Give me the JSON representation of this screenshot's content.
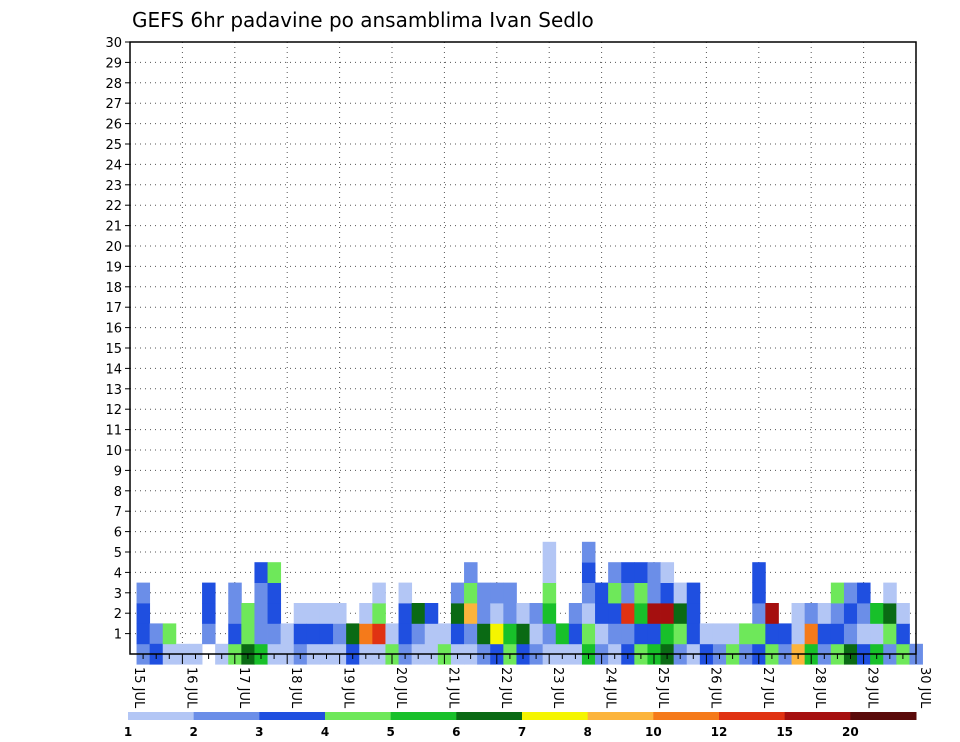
{
  "chart_data": {
    "type": "heatmap",
    "title": "GEFS 6hr padavine po ansamblima Ivan Sedlo",
    "xlabel": "",
    "ylabel": "",
    "x_ticks": [
      "15 JUL",
      "16 JUL",
      "17 JUL",
      "18 JUL",
      "19 JUL",
      "20 JUL",
      "21 JUL",
      "22 JUL",
      "23 JUL",
      "24 JUL",
      "25 JUL",
      "26 JUL",
      "27 JUL",
      "28 JUL",
      "29 JUL",
      "30 JUL"
    ],
    "xlim": [
      0,
      60
    ],
    "ylim": [
      0,
      30
    ],
    "y_ticks": [
      1,
      2,
      3,
      4,
      5,
      6,
      7,
      8,
      9,
      10,
      11,
      12,
      13,
      14,
      15,
      16,
      17,
      18,
      19,
      20,
      21,
      22,
      23,
      24,
      25,
      26,
      27,
      28,
      29,
      30
    ],
    "grid": true,
    "colorbar": {
      "labels": [
        "1",
        "2",
        "3",
        "4",
        "5",
        "6",
        "7",
        "8",
        "10",
        "12",
        "15",
        "20"
      ],
      "colors": [
        "#b3c6f5",
        "#6b8ee8",
        "#1f4fe0",
        "#6ee85a",
        "#18c02a",
        "#0a6a14",
        "#f5f500",
        "#fcb43c",
        "#f57a1a",
        "#e03212",
        "#a50f0f",
        "#5a0a0a"
      ]
    },
    "cells": [
      [
        1,
        0,
        1
      ],
      [
        1,
        1,
        2
      ],
      [
        1,
        2,
        2
      ],
      [
        1,
        3,
        1
      ],
      [
        2,
        1,
        1
      ],
      [
        2,
        0,
        2
      ],
      [
        3,
        0,
        0
      ],
      [
        3,
        1,
        3
      ],
      [
        4,
        0,
        0
      ],
      [
        5,
        0,
        0
      ],
      [
        6,
        1,
        1
      ],
      [
        6,
        2,
        2
      ],
      [
        6,
        3,
        2
      ],
      [
        7,
        0,
        0
      ],
      [
        8,
        0,
        3
      ],
      [
        8,
        1,
        2
      ],
      [
        8,
        2,
        1
      ],
      [
        8,
        3,
        1
      ],
      [
        9,
        0,
        5
      ],
      [
        9,
        1,
        3
      ],
      [
        9,
        2,
        3
      ],
      [
        10,
        0,
        4
      ],
      [
        10,
        1,
        1
      ],
      [
        10,
        2,
        1
      ],
      [
        10,
        3,
        1
      ],
      [
        10,
        4,
        2
      ],
      [
        11,
        0,
        0
      ],
      [
        11,
        1,
        1
      ],
      [
        11,
        2,
        2
      ],
      [
        11,
        3,
        2
      ],
      [
        11,
        4,
        3
      ],
      [
        12,
        0,
        0
      ],
      [
        12,
        1,
        0
      ],
      [
        13,
        0,
        1
      ],
      [
        13,
        1,
        2
      ],
      [
        13,
        2,
        0
      ],
      [
        14,
        0,
        0
      ],
      [
        14,
        1,
        2
      ],
      [
        14,
        2,
        0
      ],
      [
        15,
        0,
        0
      ],
      [
        15,
        1,
        2
      ],
      [
        15,
        2,
        0
      ],
      [
        16,
        0,
        0
      ],
      [
        16,
        1,
        1
      ],
      [
        16,
        2,
        0
      ],
      [
        17,
        0,
        2
      ],
      [
        17,
        1,
        5
      ],
      [
        18,
        0,
        0
      ],
      [
        18,
        1,
        8
      ],
      [
        18,
        2,
        0
      ],
      [
        19,
        0,
        0
      ],
      [
        19,
        1,
        9
      ],
      [
        19,
        2,
        3
      ],
      [
        19,
        3,
        0
      ],
      [
        20,
        0,
        3
      ],
      [
        20,
        1,
        0
      ],
      [
        21,
        0,
        1
      ],
      [
        21,
        1,
        2
      ],
      [
        21,
        2,
        2
      ],
      [
        21,
        3,
        0
      ],
      [
        22,
        0,
        0
      ],
      [
        22,
        1,
        1
      ],
      [
        22,
        2,
        5
      ],
      [
        23,
        0,
        0
      ],
      [
        23,
        1,
        0
      ],
      [
        23,
        2,
        2
      ],
      [
        24,
        0,
        3
      ],
      [
        24,
        1,
        0
      ],
      [
        25,
        0,
        0
      ],
      [
        25,
        1,
        2
      ],
      [
        25,
        2,
        5
      ],
      [
        25,
        3,
        1
      ],
      [
        26,
        0,
        0
      ],
      [
        26,
        1,
        1
      ],
      [
        26,
        2,
        7
      ],
      [
        26,
        3,
        3
      ],
      [
        26,
        4,
        1
      ],
      [
        27,
        0,
        1
      ],
      [
        27,
        1,
        5
      ],
      [
        27,
        2,
        1
      ],
      [
        27,
        3,
        1
      ],
      [
        28,
        0,
        2
      ],
      [
        28,
        1,
        6
      ],
      [
        28,
        2,
        0
      ],
      [
        28,
        3,
        1
      ],
      [
        29,
        0,
        3
      ],
      [
        29,
        1,
        4
      ],
      [
        29,
        2,
        1
      ],
      [
        29,
        3,
        1
      ],
      [
        30,
        0,
        2
      ],
      [
        30,
        1,
        5
      ],
      [
        30,
        2,
        0
      ],
      [
        31,
        0,
        1
      ],
      [
        31,
        1,
        0
      ],
      [
        31,
        2,
        1
      ],
      [
        32,
        0,
        0
      ],
      [
        32,
        1,
        1
      ],
      [
        32,
        2,
        4
      ],
      [
        32,
        3,
        3
      ],
      [
        32,
        4,
        0
      ],
      [
        32,
        5,
        0
      ],
      [
        33,
        0,
        0
      ],
      [
        33,
        1,
        4
      ],
      [
        34,
        0,
        0
      ],
      [
        34,
        1,
        2
      ],
      [
        34,
        2,
        1
      ],
      [
        35,
        0,
        4
      ],
      [
        35,
        1,
        3
      ],
      [
        35,
        2,
        0
      ],
      [
        35,
        3,
        1
      ],
      [
        35,
        4,
        2
      ],
      [
        35,
        5,
        1
      ],
      [
        36,
        0,
        1
      ],
      [
        36,
        1,
        0
      ],
      [
        36,
        2,
        2
      ],
      [
        36,
        3,
        2
      ],
      [
        37,
        0,
        0
      ],
      [
        37,
        1,
        1
      ],
      [
        37,
        2,
        2
      ],
      [
        37,
        3,
        3
      ],
      [
        37,
        4,
        1
      ],
      [
        38,
        0,
        2
      ],
      [
        38,
        1,
        1
      ],
      [
        38,
        2,
        9
      ],
      [
        38,
        3,
        1
      ],
      [
        38,
        4,
        2
      ],
      [
        39,
        0,
        3
      ],
      [
        39,
        1,
        2
      ],
      [
        39,
        2,
        4
      ],
      [
        39,
        3,
        3
      ],
      [
        39,
        4,
        2
      ],
      [
        40,
        0,
        4
      ],
      [
        40,
        1,
        2
      ],
      [
        40,
        2,
        10
      ],
      [
        40,
        3,
        1
      ],
      [
        40,
        4,
        1
      ],
      [
        41,
        0,
        5
      ],
      [
        41,
        1,
        4
      ],
      [
        41,
        2,
        10
      ],
      [
        41,
        3,
        2
      ],
      [
        41,
        4,
        0
      ],
      [
        42,
        0,
        1
      ],
      [
        42,
        1,
        3
      ],
      [
        42,
        2,
        5
      ],
      [
        42,
        3,
        0
      ],
      [
        43,
        0,
        0
      ],
      [
        43,
        1,
        2
      ],
      [
        43,
        2,
        2
      ],
      [
        43,
        3,
        2
      ],
      [
        44,
        0,
        2
      ],
      [
        44,
        1,
        0
      ],
      [
        45,
        0,
        1
      ],
      [
        45,
        1,
        0
      ],
      [
        46,
        0,
        3
      ],
      [
        46,
        1,
        0
      ],
      [
        47,
        0,
        1
      ],
      [
        47,
        1,
        3
      ],
      [
        48,
        0,
        2
      ],
      [
        48,
        1,
        3
      ],
      [
        48,
        2,
        1
      ],
      [
        48,
        3,
        2
      ],
      [
        48,
        4,
        2
      ],
      [
        49,
        0,
        3
      ],
      [
        49,
        1,
        2
      ],
      [
        49,
        2,
        10
      ],
      [
        50,
        0,
        1
      ],
      [
        50,
        1,
        2
      ],
      [
        51,
        0,
        7
      ],
      [
        51,
        1,
        0
      ],
      [
        51,
        2,
        0
      ],
      [
        52,
        0,
        4
      ],
      [
        52,
        1,
        8
      ],
      [
        52,
        2,
        1
      ],
      [
        53,
        0,
        1
      ],
      [
        53,
        1,
        2
      ],
      [
        53,
        2,
        0
      ],
      [
        54,
        0,
        3
      ],
      [
        54,
        1,
        2
      ],
      [
        54,
        2,
        1
      ],
      [
        54,
        3,
        3
      ],
      [
        55,
        0,
        5
      ],
      [
        55,
        1,
        1
      ],
      [
        55,
        2,
        2
      ],
      [
        55,
        3,
        1
      ],
      [
        56,
        0,
        2
      ],
      [
        56,
        1,
        0
      ],
      [
        56,
        2,
        1
      ],
      [
        56,
        3,
        2
      ],
      [
        57,
        0,
        4
      ],
      [
        57,
        1,
        0
      ],
      [
        57,
        2,
        4
      ],
      [
        58,
        0,
        1
      ],
      [
        58,
        1,
        3
      ],
      [
        58,
        2,
        5
      ],
      [
        58,
        3,
        0
      ],
      [
        59,
        0,
        3
      ],
      [
        59,
        1,
        2
      ],
      [
        59,
        2,
        0
      ],
      [
        60,
        0,
        1
      ]
    ]
  }
}
